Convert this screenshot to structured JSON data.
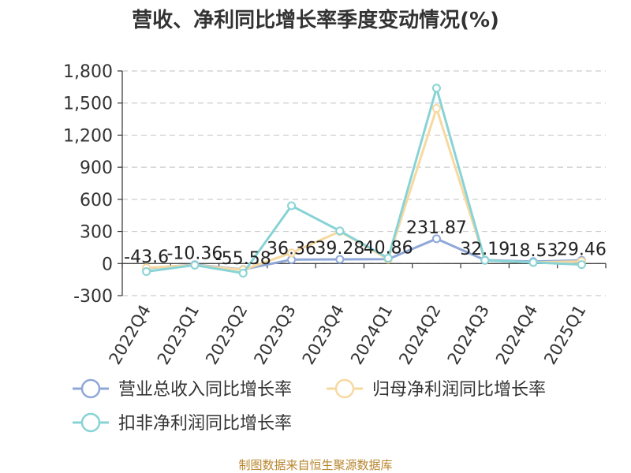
{
  "chart_data": {
    "type": "line",
    "title": "营收、净利同比增长率季度变动情况(%)",
    "categories": [
      "2022Q4",
      "2023Q1",
      "2023Q2",
      "2023Q3",
      "2023Q4",
      "2024Q1",
      "2024Q2",
      "2024Q3",
      "2024Q4",
      "2025Q1"
    ],
    "ylim": [
      -300,
      1800
    ],
    "yticks": [
      -300,
      0,
      300,
      600,
      900,
      1200,
      1500,
      1800
    ],
    "ytick_labels": [
      "-300",
      "0",
      "300",
      "600",
      "900",
      "1,200",
      "1,500",
      "1,800"
    ],
    "grid": true,
    "legend_position": "bottom-left",
    "series": [
      {
        "name": "营业总收入同比增长率",
        "color": "#8fa8d8",
        "values": [
          -43.6,
          -10.36,
          -55.58,
          36.36,
          39.28,
          40.86,
          231.87,
          32.19,
          18.53,
          29.46
        ],
        "labels": [
          "-43.6",
          "-10.36",
          "-55.58",
          "36.36",
          "39.28",
          "40.86",
          "231.87",
          "32.19",
          "18.53",
          "29.46"
        ]
      },
      {
        "name": "归母净利润同比增长率",
        "color": "#f7d9a0",
        "values": [
          -40,
          -15,
          -60,
          100,
          300,
          40,
          1450,
          30,
          10,
          20
        ]
      },
      {
        "name": "扣非净利润同比增长率",
        "color": "#88d3d6",
        "values": [
          -75,
          -15,
          -90,
          540,
          305,
          50,
          1640,
          30,
          10,
          -10
        ]
      }
    ]
  },
  "source": "制图数据来自恒生聚源数据库"
}
